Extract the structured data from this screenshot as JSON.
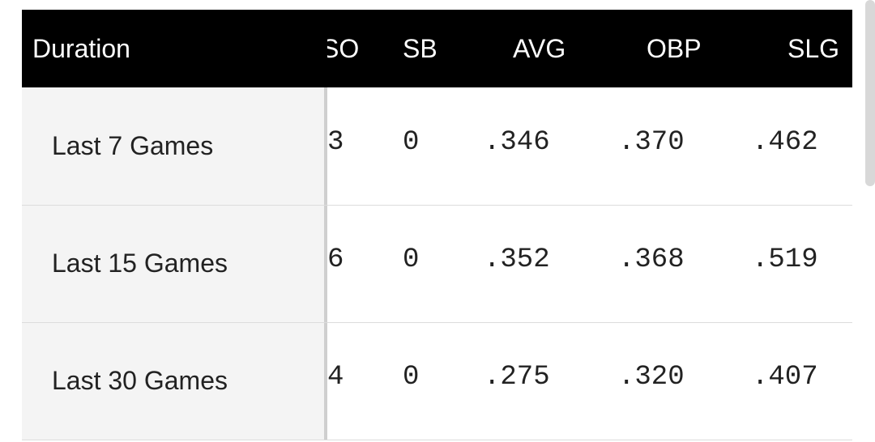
{
  "table": {
    "columns": [
      "Duration",
      "SO",
      "SB",
      "AVG",
      "OBP",
      "SLG"
    ],
    "rows": [
      [
        "Last 7 Games",
        "3",
        "0",
        ".346",
        ".370",
        ".462"
      ],
      [
        "Last 15 Games",
        "6",
        "0",
        ".352",
        ".368",
        ".519"
      ],
      [
        "Last 30 Games",
        "4",
        "0",
        ".275",
        ".320",
        ".407"
      ]
    ]
  }
}
